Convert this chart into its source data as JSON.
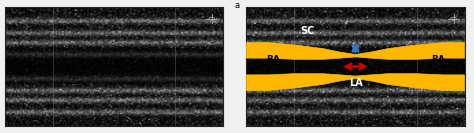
{
  "bg_color": "#f0f0f0",
  "label_a": "a",
  "black_text": "#000000",
  "us_bg": "#111111",
  "yellow_color": "#FFB800",
  "red_arrow_color": "#CC0000",
  "blue_arrow_color": "#3377CC",
  "white_text": "#ffffff",
  "grid_line_color": "#888888",
  "crosshair_color": "#aaaaaa",
  "border_color": "#222222",
  "label_SC": "SC",
  "label_LA": "LA",
  "label_RA_left": "RA",
  "label_RA_right": "RA"
}
